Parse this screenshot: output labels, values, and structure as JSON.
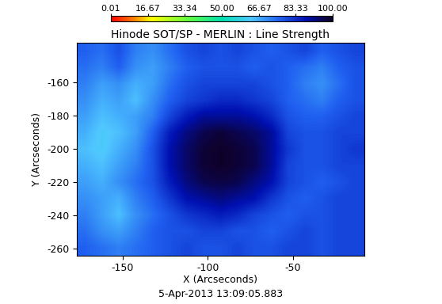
{
  "chart_data": {
    "type": "heatmap",
    "title": "Hinode SOT/SP - MERLIN : Line Strength",
    "x_label": "X (Arcseconds)",
    "y_label": "Y (Arcseconds)",
    "annotations": [
      "5-Apr-2013 13:09:05.883"
    ],
    "xlim": [
      -177,
      -8
    ],
    "ylim": [
      -264,
      -136
    ],
    "xticks": [
      -150,
      -100,
      -50
    ],
    "yticks": [
      -160,
      -180,
      -200,
      -220,
      -240,
      -260
    ],
    "cells": [
      [
        76,
        74,
        78,
        72,
        70,
        74,
        78,
        80,
        78,
        80,
        78,
        76,
        78,
        80,
        76,
        78,
        80
      ],
      [
        74,
        72,
        76,
        70,
        68,
        72,
        76,
        78,
        78,
        78,
        76,
        78,
        76,
        74,
        72,
        76,
        78
      ],
      [
        72,
        68,
        70,
        66,
        68,
        74,
        78,
        80,
        80,
        80,
        80,
        78,
        76,
        72,
        70,
        74,
        78
      ],
      [
        70,
        66,
        68,
        64,
        70,
        76,
        80,
        82,
        84,
        84,
        82,
        80,
        76,
        74,
        72,
        76,
        78
      ],
      [
        68,
        64,
        66,
        68,
        72,
        80,
        86,
        90,
        90,
        90,
        88,
        84,
        78,
        76,
        76,
        78,
        80
      ],
      [
        66,
        62,
        64,
        68,
        76,
        86,
        92,
        96,
        98,
        96,
        94,
        90,
        80,
        78,
        78,
        80,
        80
      ],
      [
        64,
        62,
        66,
        70,
        78,
        88,
        94,
        98,
        99,
        98,
        96,
        90,
        82,
        78,
        78,
        80,
        82
      ],
      [
        66,
        64,
        68,
        72,
        78,
        88,
        94,
        98,
        99,
        98,
        96,
        90,
        80,
        78,
        78,
        80,
        80
      ],
      [
        68,
        66,
        70,
        74,
        78,
        86,
        92,
        96,
        97,
        96,
        92,
        88,
        80,
        78,
        76,
        78,
        80
      ],
      [
        70,
        68,
        66,
        72,
        76,
        82,
        88,
        90,
        92,
        90,
        88,
        82,
        78,
        76,
        78,
        80,
        80
      ],
      [
        72,
        68,
        64,
        70,
        74,
        78,
        82,
        84,
        86,
        84,
        80,
        78,
        76,
        78,
        78,
        80,
        80
      ],
      [
        74,
        70,
        68,
        72,
        76,
        78,
        78,
        80,
        80,
        78,
        78,
        76,
        78,
        80,
        78,
        80,
        80
      ],
      [
        76,
        74,
        72,
        74,
        76,
        78,
        80,
        78,
        78,
        80,
        78,
        78,
        80,
        80,
        78,
        80,
        80
      ]
    ],
    "colorbar_range": [
      0.01,
      100
    ],
    "colorbar_ticks": [
      0.01,
      16.67,
      33.34,
      {
        "value": 50,
        "label": "50.00"
      },
      66.67,
      83.33,
      {
        "value": 100,
        "label": "100.00"
      }
    ]
  }
}
